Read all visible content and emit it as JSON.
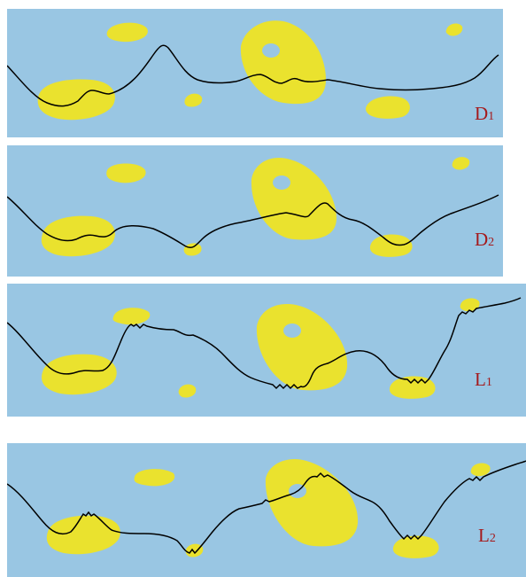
{
  "colors": {
    "water": "#99c6e3",
    "island": "#eae22e",
    "curve": "#000000",
    "label": "#a5191b"
  },
  "panels": [
    {
      "letter": "D",
      "sub": "1"
    },
    {
      "letter": "D",
      "sub": "2"
    },
    {
      "letter": "L",
      "sub": "1"
    },
    {
      "letter": "L",
      "sub": "2"
    }
  ]
}
